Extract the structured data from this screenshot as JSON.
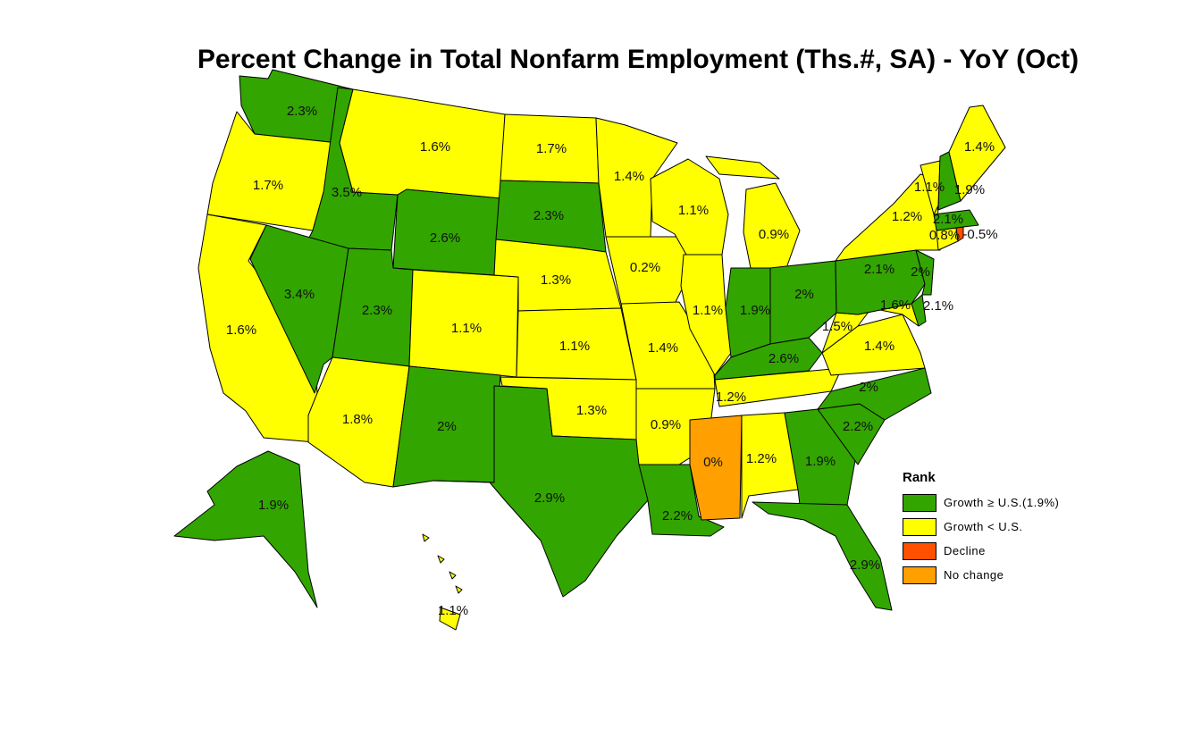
{
  "title": "Percent Change in Total Nonfarm Employment (Ths.#, SA) - YoY (Oct)",
  "colors": {
    "growth_above": "#33a500",
    "growth_below": "#ffff00",
    "decline": "#ff4f00",
    "no_change": "#ff9f00"
  },
  "legend": {
    "title": "Rank",
    "items": [
      {
        "label": "Growth ≥ U.S.(1.9%)",
        "category": "growth_above"
      },
      {
        "label": "Growth < U.S.",
        "category": "growth_below"
      },
      {
        "label": "Decline",
        "category": "decline"
      },
      {
        "label": "No change",
        "category": "no_change"
      }
    ]
  },
  "states": [
    {
      "id": "WA",
      "value": "2.3%",
      "category": "growth_above"
    },
    {
      "id": "OR",
      "value": "1.7%",
      "category": "growth_below"
    },
    {
      "id": "CA",
      "value": "1.6%",
      "category": "growth_below"
    },
    {
      "id": "ID",
      "value": "3.5%",
      "category": "growth_above"
    },
    {
      "id": "NV",
      "value": "3.4%",
      "category": "growth_above"
    },
    {
      "id": "MT",
      "value": "1.6%",
      "category": "growth_below"
    },
    {
      "id": "WY",
      "value": "2.6%",
      "category": "growth_above"
    },
    {
      "id": "UT",
      "value": "2.3%",
      "category": "growth_above"
    },
    {
      "id": "AZ",
      "value": "1.8%",
      "category": "growth_below"
    },
    {
      "id": "CO",
      "value": "1.1%",
      "category": "growth_below"
    },
    {
      "id": "NM",
      "value": "2%",
      "category": "growth_above"
    },
    {
      "id": "ND",
      "value": "1.7%",
      "category": "growth_below"
    },
    {
      "id": "SD",
      "value": "2.3%",
      "category": "growth_above"
    },
    {
      "id": "NE",
      "value": "1.3%",
      "category": "growth_below"
    },
    {
      "id": "KS",
      "value": "1.1%",
      "category": "growth_below"
    },
    {
      "id": "OK",
      "value": "1.3%",
      "category": "growth_below"
    },
    {
      "id": "TX",
      "value": "2.9%",
      "category": "growth_above"
    },
    {
      "id": "MN",
      "value": "1.4%",
      "category": "growth_below"
    },
    {
      "id": "IA",
      "value": "0.2%",
      "category": "growth_below"
    },
    {
      "id": "MO",
      "value": "1.4%",
      "category": "growth_below"
    },
    {
      "id": "AR",
      "value": "0.9%",
      "category": "growth_below"
    },
    {
      "id": "LA",
      "value": "2.2%",
      "category": "growth_above"
    },
    {
      "id": "WI",
      "value": "1.1%",
      "category": "growth_below"
    },
    {
      "id": "IL",
      "value": "1.1%",
      "category": "growth_below"
    },
    {
      "id": "MI",
      "value": "0.9%",
      "category": "growth_below"
    },
    {
      "id": "IN",
      "value": "1.9%",
      "category": "growth_above"
    },
    {
      "id": "OH",
      "value": "2%",
      "category": "growth_above"
    },
    {
      "id": "KY",
      "value": "2.6%",
      "category": "growth_above"
    },
    {
      "id": "TN",
      "value": "1.2%",
      "category": "growth_below"
    },
    {
      "id": "MS",
      "value": "0%",
      "category": "no_change"
    },
    {
      "id": "AL",
      "value": "1.2%",
      "category": "growth_below"
    },
    {
      "id": "GA",
      "value": "1.9%",
      "category": "growth_above"
    },
    {
      "id": "FL",
      "value": "2.9%",
      "category": "growth_above"
    },
    {
      "id": "SC",
      "value": "2.2%",
      "category": "growth_above"
    },
    {
      "id": "NC",
      "value": "2%",
      "category": "growth_above"
    },
    {
      "id": "VA",
      "value": "1.4%",
      "category": "growth_below"
    },
    {
      "id": "WV",
      "value": "1.5%",
      "category": "growth_below"
    },
    {
      "id": "MD",
      "value": "1.6%",
      "category": "growth_below"
    },
    {
      "id": "DE",
      "value": "2.1%",
      "category": "growth_above"
    },
    {
      "id": "PA",
      "value": "2.1%",
      "category": "growth_above"
    },
    {
      "id": "NJ",
      "value": "2%",
      "category": "growth_above"
    },
    {
      "id": "NY",
      "value": "1.2%",
      "category": "growth_below"
    },
    {
      "id": "CT",
      "value": "0.8%",
      "category": "growth_below"
    },
    {
      "id": "RI",
      "value": "-0.5%",
      "category": "decline"
    },
    {
      "id": "MA",
      "value": "2.1%",
      "category": "growth_above"
    },
    {
      "id": "VT",
      "value": "1.1%",
      "category": "growth_below"
    },
    {
      "id": "NH",
      "value": "1.9%",
      "category": "growth_above"
    },
    {
      "id": "ME",
      "value": "1.4%",
      "category": "growth_below"
    },
    {
      "id": "AK",
      "value": "1.9%",
      "category": "growth_above"
    },
    {
      "id": "HI",
      "value": "1.1%",
      "category": "growth_below"
    }
  ]
}
